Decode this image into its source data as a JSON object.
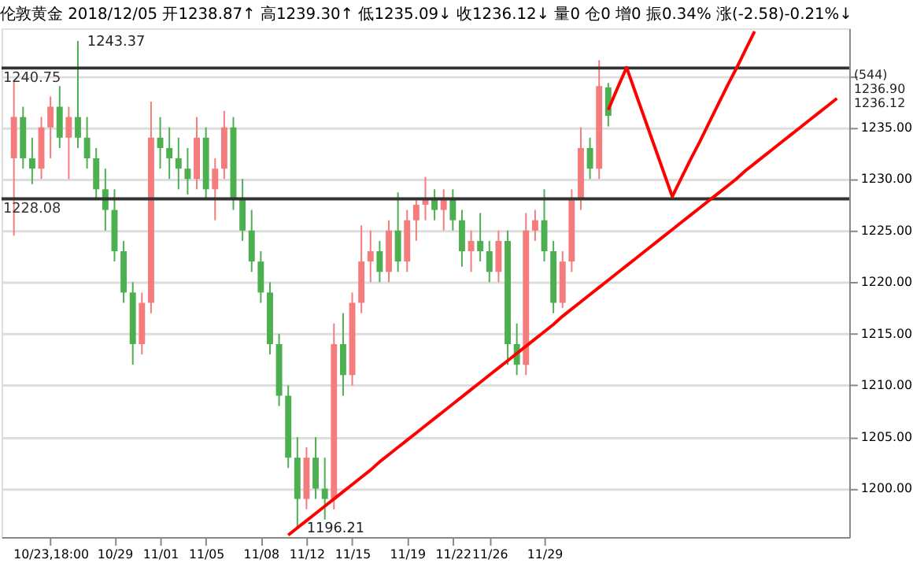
{
  "chart_data": {
    "type": "candlestick",
    "title": "伦敦黄金 2018/12/05 开1238.87↑ 高1239.30↑ 低1235.09↓ 收1236.12↓ 量0 仓0 增0 振0.34% 涨(-2.58)-0.21%↓",
    "categories": [
      null,
      null,
      null,
      null,
      "10/23,18:00",
      null,
      null,
      null,
      null,
      null,
      null,
      "10/29",
      null,
      null,
      null,
      null,
      "11/01",
      null,
      null,
      null,
      null,
      "11/05",
      null,
      null,
      null,
      null,
      null,
      "11/08",
      null,
      null,
      null,
      null,
      "11/12",
      null,
      null,
      null,
      null,
      "11/15",
      null,
      null,
      null,
      null,
      null,
      "11/19",
      null,
      null,
      null,
      null,
      "11/22",
      null,
      null,
      null,
      "11/26",
      null,
      null,
      null,
      null,
      null,
      "11/29",
      null,
      null,
      null,
      null,
      null,
      null,
      null,
      null,
      null,
      null,
      null,
      null,
      null,
      null,
      null,
      null,
      null,
      null,
      null,
      null,
      null,
      null,
      null,
      null,
      null,
      null,
      null,
      null,
      null,
      null,
      null,
      null
    ],
    "ohlc": [
      [
        1232,
        1239.5,
        1224.5,
        1236
      ],
      [
        1236,
        1237,
        1231,
        1232
      ],
      [
        1232,
        1234,
        1229.5,
        1231
      ],
      [
        1231,
        1236,
        1230,
        1235
      ],
      [
        1235,
        1238,
        1232,
        1237
      ],
      [
        1237,
        1239,
        1233,
        1234
      ],
      [
        1234,
        1237,
        1230,
        1236
      ],
      [
        1236,
        1243.37,
        1233,
        1234
      ],
      [
        1234,
        1236,
        1231,
        1232
      ],
      [
        1232,
        1233,
        1228,
        1229
      ],
      [
        1229,
        1231,
        1225,
        1227
      ],
      [
        1227,
        1229,
        1222,
        1223
      ],
      [
        1223,
        1224,
        1218,
        1219
      ],
      [
        1219,
        1220,
        1212,
        1214
      ],
      [
        1214,
        1219,
        1213,
        1218
      ],
      [
        1218,
        1237.5,
        1217,
        1234
      ],
      [
        1234,
        1236,
        1231,
        1233
      ],
      [
        1233,
        1235,
        1230,
        1232
      ],
      [
        1232,
        1234,
        1229,
        1231
      ],
      [
        1231,
        1233,
        1228.5,
        1230
      ],
      [
        1230,
        1236,
        1229,
        1234
      ],
      [
        1234,
        1235,
        1228,
        1229
      ],
      [
        1229,
        1232,
        1226,
        1231
      ],
      [
        1231,
        1236.6,
        1230,
        1235
      ],
      [
        1235,
        1236,
        1227,
        1228
      ],
      [
        1228,
        1230,
        1224,
        1225
      ],
      [
        1225,
        1227,
        1221,
        1222
      ],
      [
        1222,
        1223,
        1218,
        1219
      ],
      [
        1219,
        1220,
        1213,
        1214
      ],
      [
        1214,
        1215,
        1208,
        1209
      ],
      [
        1209,
        1210,
        1202,
        1203
      ],
      [
        1203,
        1205,
        1196.21,
        1199
      ],
      [
        1199,
        1204,
        1198,
        1203
      ],
      [
        1203,
        1205,
        1199,
        1200
      ],
      [
        1200,
        1203,
        1197,
        1199
      ],
      [
        1199,
        1216,
        1198,
        1214
      ],
      [
        1214,
        1217,
        1209,
        1211
      ],
      [
        1211,
        1219,
        1210,
        1218
      ],
      [
        1218,
        1225.5,
        1217,
        1222
      ],
      [
        1222,
        1225,
        1220,
        1223
      ],
      [
        1223,
        1224,
        1220,
        1221
      ],
      [
        1221,
        1226,
        1220,
        1225
      ],
      [
        1225,
        1228.7,
        1221,
        1222
      ],
      [
        1222,
        1227,
        1221,
        1226
      ],
      [
        1226,
        1228,
        1224,
        1227.5
      ],
      [
        1227.5,
        1230.2,
        1226,
        1228
      ],
      [
        1228,
        1229,
        1226,
        1227
      ],
      [
        1227,
        1229,
        1225,
        1228
      ],
      [
        1228,
        1229,
        1225,
        1226
      ],
      [
        1226,
        1227,
        1221.5,
        1223
      ],
      [
        1223,
        1225,
        1221,
        1224
      ],
      [
        1224,
        1226.7,
        1222,
        1223
      ],
      [
        1223,
        1224,
        1220,
        1221
      ],
      [
        1221,
        1225,
        1220,
        1224
      ],
      [
        1224,
        1225,
        1212,
        1214
      ],
      [
        1214,
        1216,
        1211,
        1212
      ],
      [
        1212,
        1226.7,
        1211,
        1225
      ],
      [
        1225,
        1227,
        1224,
        1226
      ],
      [
        1226,
        1229,
        1222,
        1223
      ],
      [
        1223,
        1224,
        1217,
        1218
      ],
      [
        1218,
        1223,
        1217.5,
        1222
      ],
      [
        1222,
        1229,
        1221,
        1228
      ],
      [
        1228,
        1235,
        1227,
        1233
      ],
      [
        1233,
        1234,
        1230,
        1231
      ],
      [
        1231,
        1241.5,
        1230,
        1239
      ],
      [
        1238.87,
        1239.3,
        1235.09,
        1236.12
      ],
      null,
      null,
      null,
      null,
      null,
      null,
      null,
      null,
      null,
      null,
      null,
      null,
      null,
      null,
      null,
      null,
      null,
      null,
      null,
      null,
      null,
      null,
      null,
      null,
      null
    ],
    "colors": [
      "#f47c7c",
      "#4caf50",
      "#4caf50",
      "#f47c7c",
      "#f47c7c",
      "#4caf50",
      "#f47c7c",
      "#4caf50",
      "#4caf50",
      "#4caf50",
      "#4caf50",
      "#4caf50",
      "#4caf50",
      "#4caf50",
      "#f47c7c",
      "#f47c7c",
      "#4caf50",
      "#4caf50",
      "#4caf50",
      "#4caf50",
      "#f47c7c",
      "#4caf50",
      "#f47c7c",
      "#f47c7c",
      "#4caf50",
      "#4caf50",
      "#4caf50",
      "#4caf50",
      "#4caf50",
      "#4caf50",
      "#4caf50",
      "#4caf50",
      "#f47c7c",
      "#4caf50",
      "#4caf50",
      "#f47c7c",
      "#4caf50",
      "#f47c7c",
      "#f47c7c",
      "#f47c7c",
      "#4caf50",
      "#f47c7c",
      "#4caf50",
      "#f47c7c",
      "#f47c7c",
      "#f47c7c",
      "#4caf50",
      "#f47c7c",
      "#4caf50",
      "#4caf50",
      "#f47c7c",
      "#4caf50",
      "#4caf50",
      "#f47c7c",
      "#4caf50",
      "#4caf50",
      "#f47c7c",
      "#f47c7c",
      "#4caf50",
      "#4caf50",
      "#f47c7c",
      "#f47c7c",
      "#f47c7c",
      "#4caf50",
      "#f47c7c",
      "#4caf50",
      null,
      null,
      null,
      null,
      null,
      null,
      null,
      null,
      null,
      null,
      null,
      null,
      null,
      null,
      null,
      null,
      null,
      null,
      null,
      null,
      null,
      null,
      null,
      null,
      null
    ],
    "series": [
      {
        "type": "line",
        "color": "#ff0000",
        "values": [
          null,
          null,
          null,
          null,
          null,
          null,
          null,
          null,
          null,
          null,
          null,
          null,
          null,
          null,
          null,
          null,
          null,
          null,
          null,
          null,
          null,
          null,
          null,
          null,
          null,
          null,
          null,
          null,
          null,
          null,
          1195.5,
          1196.2,
          1196.9,
          1197.6,
          1198.3,
          1199.0,
          1199.7,
          1200.4,
          1201.1,
          1201.8,
          1202.6,
          1203.3,
          1204.0,
          1204.7,
          1205.4,
          1206.1,
          1206.8,
          1207.5,
          1208.2,
          1208.9,
          1209.6,
          1210.3,
          1211.0,
          1211.7,
          1212.4,
          1213.1,
          1213.8,
          1214.5,
          1215.2,
          1215.9,
          1216.7,
          1217.4,
          1218.1,
          1218.8,
          1219.5,
          1220.2,
          1220.9,
          1221.6,
          1222.3,
          1223.0,
          1223.7,
          1224.4,
          1225.1,
          1225.8,
          1226.5,
          1227.2,
          1227.9,
          1228.6,
          1229.3,
          1230.0,
          1230.8,
          1231.5,
          1232.2,
          1232.9,
          1233.6,
          1234.3,
          1235.0,
          1235.7,
          1236.4,
          1237.1,
          1237.8
        ]
      },
      {
        "type": "line",
        "color": "#ff0000",
        "values": [
          null,
          null,
          null,
          null,
          null,
          null,
          null,
          null,
          null,
          null,
          null,
          null,
          null,
          null,
          null,
          null,
          null,
          null,
          null,
          null,
          null,
          null,
          null,
          null,
          null,
          null,
          null,
          null,
          null,
          null,
          null,
          null,
          null,
          null,
          null,
          null,
          null,
          null,
          null,
          null,
          null,
          null,
          null,
          null,
          null,
          null,
          null,
          null,
          null,
          null,
          null,
          null,
          null,
          null,
          null,
          null,
          null,
          null,
          null,
          null,
          null,
          null,
          null,
          null,
          null,
          1236.7,
          1238.8,
          1240.8,
          1238.3,
          1235.8,
          1233.3,
          1230.8,
          1228.3,
          1230.1,
          1231.9,
          1233.6,
          1235.4,
          1237.2,
          1239.0,
          1240.7,
          1242.5,
          1244.3,
          null,
          null,
          null,
          null,
          null,
          null,
          null,
          null,
          null
        ]
      }
    ],
    "ylim": [
      1195.3,
      1244.6
    ],
    "yticks": [
      {
        "value": 1200,
        "label": "1200.00"
      },
      {
        "value": 1205,
        "label": "1205.00"
      },
      {
        "value": 1210,
        "label": "1210.00"
      },
      {
        "value": 1215,
        "label": "1215.00"
      },
      {
        "value": 1220,
        "label": "1220.00"
      },
      {
        "value": 1225,
        "label": "1225.00"
      },
      {
        "value": 1230,
        "label": "1230.00"
      },
      {
        "value": 1235,
        "label": "1235.00"
      },
      {
        "value": 1240,
        "label": null
      }
    ],
    "grid": "y",
    "ref_lines": [
      {
        "axis": "y",
        "value": 1240.75,
        "label": "1240.75",
        "color": "#333333"
      },
      {
        "axis": "y",
        "value": 1228.08,
        "label": "1228.08",
        "color": "#333333"
      }
    ],
    "annotations": [
      "1243.37",
      "1196.21",
      "(544)",
      "1236.90",
      "1236.12"
    ]
  }
}
